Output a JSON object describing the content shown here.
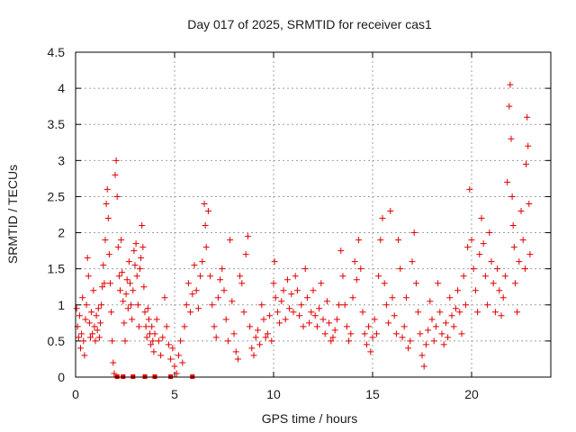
{
  "chart_data": {
    "type": "scatter",
    "title": "Day 017 of 2025, SRMTID for receiver cas1",
    "xlabel": "GPS time / hours",
    "ylabel": "SRMTID / TECUs",
    "xlim": [
      0,
      24
    ],
    "ylim": [
      0,
      4.5
    ],
    "x_ticks": [
      0,
      5,
      10,
      15,
      20
    ],
    "x_tick_labels": [
      "0",
      "5",
      "10",
      "15",
      "20"
    ],
    "y_ticks": [
      0,
      0.5,
      1,
      1.5,
      2,
      2.5,
      3,
      3.5,
      4,
      4.5
    ],
    "y_tick_labels": [
      "0",
      "0.5",
      "1",
      "1.5",
      "2",
      "2.5",
      "3",
      "3.5",
      "4",
      "4.5"
    ],
    "grid": true,
    "marker": "plus",
    "color": "#e00000",
    "series": [
      {
        "name": "SRMTID",
        "points": [
          [
            0.05,
            0.95
          ],
          [
            0.1,
            0.7
          ],
          [
            0.15,
            0.55
          ],
          [
            0.2,
            0.85
          ],
          [
            0.25,
            0.4
          ],
          [
            0.3,
            0.6
          ],
          [
            0.35,
            1.1
          ],
          [
            0.4,
            0.5
          ],
          [
            0.45,
            0.3
          ],
          [
            0.5,
            0.8
          ],
          [
            0.55,
            1.0
          ],
          [
            0.6,
            1.65
          ],
          [
            0.65,
            1.4
          ],
          [
            0.7,
            0.75
          ],
          [
            0.75,
            0.55
          ],
          [
            0.8,
            0.9
          ],
          [
            0.85,
            0.6
          ],
          [
            0.9,
            1.2
          ],
          [
            0.95,
            0.7
          ],
          [
            1.0,
            0.5
          ],
          [
            1.05,
            0.85
          ],
          [
            1.1,
            0.65
          ],
          [
            1.15,
            0.95
          ],
          [
            1.2,
            0.55
          ],
          [
            1.25,
            0.75
          ],
          [
            1.3,
            1.0
          ],
          [
            1.35,
            1.25
          ],
          [
            1.4,
            1.55
          ],
          [
            1.45,
            1.3
          ],
          [
            1.5,
            1.9
          ],
          [
            1.55,
            2.4
          ],
          [
            1.6,
            2.6
          ],
          [
            1.65,
            2.2
          ],
          [
            1.7,
            1.7
          ],
          [
            1.75,
            1.3
          ],
          [
            1.8,
            0.9
          ],
          [
            1.85,
            0.5
          ],
          [
            1.9,
            0.2
          ],
          [
            1.95,
            0.05
          ],
          [
            2.0,
            2.8
          ],
          [
            2.05,
            3.0
          ],
          [
            2.1,
            2.5
          ],
          [
            2.15,
            1.8
          ],
          [
            2.2,
            1.4
          ],
          [
            2.25,
            1.2
          ],
          [
            2.3,
            1.9
          ],
          [
            2.35,
            1.45
          ],
          [
            2.4,
            1.05
          ],
          [
            2.45,
            0.75
          ],
          [
            2.5,
            0.5
          ],
          [
            2.55,
            1.15
          ],
          [
            2.6,
            1.35
          ],
          [
            2.65,
            0.95
          ],
          [
            2.7,
            1.6
          ],
          [
            2.75,
            1.3
          ],
          [
            2.8,
            1.0
          ],
          [
            2.85,
            0.8
          ],
          [
            2.9,
            1.2
          ],
          [
            2.95,
            1.75
          ],
          [
            3.0,
            1.55
          ],
          [
            3.05,
            1.85
          ],
          [
            3.1,
            1.4
          ],
          [
            3.15,
            1.0
          ],
          [
            3.2,
            0.7
          ],
          [
            3.25,
            1.5
          ],
          [
            3.3,
            1.65
          ],
          [
            3.35,
            2.1
          ],
          [
            3.4,
            1.8
          ],
          [
            3.45,
            1.25
          ],
          [
            3.5,
            0.9
          ],
          [
            3.55,
            0.7
          ],
          [
            3.6,
            0.55
          ],
          [
            3.65,
            0.95
          ],
          [
            3.7,
            0.8
          ],
          [
            3.75,
            0.6
          ],
          [
            3.8,
            0.45
          ],
          [
            3.85,
            0.7
          ],
          [
            3.9,
            0.5
          ],
          [
            3.95,
            0.35
          ],
          [
            4.0,
            0.6
          ],
          [
            4.1,
            0.8
          ],
          [
            4.2,
            0.5
          ],
          [
            4.3,
            0.3
          ],
          [
            4.4,
            0.55
          ],
          [
            4.5,
            1.1
          ],
          [
            4.6,
            0.7
          ],
          [
            4.7,
            0.45
          ],
          [
            4.8,
            0.25
          ],
          [
            4.9,
            0.4
          ],
          [
            5.0,
            0.15
          ],
          [
            5.1,
            0.05
          ],
          [
            5.2,
            0.3
          ],
          [
            5.3,
            0.5
          ],
          [
            5.4,
            0.2
          ],
          [
            5.5,
            0.7
          ],
          [
            5.6,
            1.0
          ],
          [
            5.7,
            1.3
          ],
          [
            5.8,
            0.9
          ],
          [
            5.9,
            1.15
          ],
          [
            6.0,
            1.55
          ],
          [
            6.1,
            1.2
          ],
          [
            6.2,
            0.95
          ],
          [
            6.3,
            1.4
          ],
          [
            6.4,
            1.6
          ],
          [
            6.5,
            2.4
          ],
          [
            6.55,
            2.1
          ],
          [
            6.6,
            1.8
          ],
          [
            6.7,
            2.3
          ],
          [
            6.8,
            1.4
          ],
          [
            6.9,
            1.0
          ],
          [
            7.0,
            0.7
          ],
          [
            7.1,
            0.55
          ],
          [
            7.2,
            1.1
          ],
          [
            7.3,
            1.35
          ],
          [
            7.4,
            1.5
          ],
          [
            7.5,
            1.2
          ],
          [
            7.6,
            0.8
          ],
          [
            7.7,
            0.5
          ],
          [
            7.8,
            1.9
          ],
          [
            7.9,
            1.05
          ],
          [
            8.0,
            0.6
          ],
          [
            8.1,
            0.35
          ],
          [
            8.2,
            0.25
          ],
          [
            8.3,
            1.4
          ],
          [
            8.4,
            1.3
          ],
          [
            8.5,
            0.9
          ],
          [
            8.6,
            1.7
          ],
          [
            8.7,
            1.95
          ],
          [
            8.8,
            0.7
          ],
          [
            8.9,
            0.4
          ],
          [
            9.0,
            0.3
          ],
          [
            9.1,
            0.55
          ],
          [
            9.2,
            0.65
          ],
          [
            9.3,
            0.45
          ],
          [
            9.4,
            1.0
          ],
          [
            9.5,
            0.8
          ],
          [
            9.6,
            0.55
          ],
          [
            9.7,
            0.6
          ],
          [
            9.8,
            0.85
          ],
          [
            9.9,
            0.5
          ],
          [
            10.0,
            1.3
          ],
          [
            10.05,
            1.6
          ],
          [
            10.1,
            1.1
          ],
          [
            10.2,
            0.9
          ],
          [
            10.3,
            0.75
          ],
          [
            10.4,
            1.05
          ],
          [
            10.5,
            1.2
          ],
          [
            10.6,
            0.8
          ],
          [
            10.7,
            1.35
          ],
          [
            10.8,
            0.95
          ],
          [
            10.9,
            1.15
          ],
          [
            11.0,
            0.9
          ],
          [
            11.1,
            1.4
          ],
          [
            11.2,
            1.2
          ],
          [
            11.3,
            0.85
          ],
          [
            11.4,
            1.0
          ],
          [
            11.5,
            0.7
          ],
          [
            11.6,
            1.5
          ],
          [
            11.7,
            1.1
          ],
          [
            11.8,
            0.75
          ],
          [
            11.9,
            0.9
          ],
          [
            12.0,
            1.2
          ],
          [
            12.1,
            0.85
          ],
          [
            12.2,
            0.7
          ],
          [
            12.3,
            0.95
          ],
          [
            12.4,
            1.3
          ],
          [
            12.5,
            0.8
          ],
          [
            12.6,
            0.6
          ],
          [
            12.7,
            1.05
          ],
          [
            12.8,
            0.75
          ],
          [
            12.9,
            0.5
          ],
          [
            13.0,
            0.55
          ],
          [
            13.1,
            0.65
          ],
          [
            13.2,
            0.8
          ],
          [
            13.3,
            1.0
          ],
          [
            13.4,
            1.75
          ],
          [
            13.5,
            1.4
          ],
          [
            13.6,
            1.0
          ],
          [
            13.7,
            0.7
          ],
          [
            13.8,
            0.5
          ],
          [
            13.9,
            0.6
          ],
          [
            14.0,
            1.1
          ],
          [
            14.1,
            1.6
          ],
          [
            14.2,
            1.35
          ],
          [
            14.3,
            1.9
          ],
          [
            14.4,
            1.5
          ],
          [
            14.5,
            0.9
          ],
          [
            14.6,
            0.6
          ],
          [
            14.7,
            0.45
          ],
          [
            14.8,
            0.7
          ],
          [
            14.9,
            0.35
          ],
          [
            15.0,
            0.55
          ],
          [
            15.1,
            0.8
          ],
          [
            15.2,
            0.6
          ],
          [
            15.3,
            1.4
          ],
          [
            15.4,
            1.9
          ],
          [
            15.5,
            2.2
          ],
          [
            15.6,
            1.3
          ],
          [
            15.7,
            1.0
          ],
          [
            15.8,
            0.75
          ],
          [
            15.9,
            2.3
          ],
          [
            16.0,
            1.1
          ],
          [
            16.1,
            0.85
          ],
          [
            16.2,
            0.6
          ],
          [
            16.3,
            1.9
          ],
          [
            16.4,
            1.5
          ],
          [
            16.5,
            0.55
          ],
          [
            16.6,
            0.7
          ],
          [
            16.7,
            1.1
          ],
          [
            16.8,
            0.4
          ],
          [
            16.9,
            0.5
          ],
          [
            17.0,
            1.6
          ],
          [
            17.1,
            2.0
          ],
          [
            17.2,
            1.3
          ],
          [
            17.3,
            0.9
          ],
          [
            17.4,
            0.6
          ],
          [
            17.5,
            0.3
          ],
          [
            17.6,
            0.15
          ],
          [
            17.7,
            0.45
          ],
          [
            17.8,
            0.65
          ],
          [
            17.9,
            1.05
          ],
          [
            18.0,
            0.8
          ],
          [
            18.1,
            0.5
          ],
          [
            18.2,
            0.7
          ],
          [
            18.3,
            1.3
          ],
          [
            18.4,
            0.9
          ],
          [
            18.5,
            0.6
          ],
          [
            18.6,
            0.45
          ],
          [
            18.7,
            0.75
          ],
          [
            18.8,
            0.55
          ],
          [
            18.9,
            1.1
          ],
          [
            19.0,
            0.85
          ],
          [
            19.1,
            0.7
          ],
          [
            19.2,
            0.95
          ],
          [
            19.3,
            1.2
          ],
          [
            19.4,
            0.9
          ],
          [
            19.5,
            0.6
          ],
          [
            19.6,
            1.4
          ],
          [
            19.7,
            1.0
          ],
          [
            19.8,
            1.8
          ],
          [
            19.9,
            2.6
          ],
          [
            20.0,
            1.9
          ],
          [
            20.1,
            1.5
          ],
          [
            20.2,
            1.2
          ],
          [
            20.3,
            0.9
          ],
          [
            20.4,
            1.7
          ],
          [
            20.5,
            2.2
          ],
          [
            20.6,
            1.85
          ],
          [
            20.7,
            1.4
          ],
          [
            20.8,
            1.0
          ],
          [
            20.9,
            2.0
          ],
          [
            21.0,
            1.6
          ],
          [
            21.1,
            1.3
          ],
          [
            21.2,
            0.9
          ],
          [
            21.3,
            1.5
          ],
          [
            21.4,
            1.2
          ],
          [
            21.5,
            0.85
          ],
          [
            21.6,
            1.1
          ],
          [
            21.7,
            1.4
          ],
          [
            21.8,
            2.7
          ],
          [
            21.9,
            3.75
          ],
          [
            21.95,
            4.05
          ],
          [
            22.0,
            3.3
          ],
          [
            22.05,
            2.5
          ],
          [
            22.1,
            2.1
          ],
          [
            22.15,
            1.8
          ],
          [
            22.2,
            1.3
          ],
          [
            22.3,
            0.9
          ],
          [
            22.4,
            1.6
          ],
          [
            22.5,
            2.3
          ],
          [
            22.6,
            1.9
          ],
          [
            22.7,
            1.5
          ],
          [
            22.75,
            2.95
          ],
          [
            22.8,
            3.6
          ],
          [
            22.85,
            3.2
          ],
          [
            22.9,
            2.4
          ],
          [
            22.95,
            1.7
          ]
        ]
      }
    ],
    "marker_at_zero": [
      [
        2.1,
        0.0
      ],
      [
        2.4,
        0.0
      ],
      [
        2.9,
        0.0
      ],
      [
        3.5,
        0.0
      ],
      [
        4.0,
        0.0
      ],
      [
        4.8,
        0.0
      ],
      [
        5.9,
        0.0
      ]
    ]
  }
}
